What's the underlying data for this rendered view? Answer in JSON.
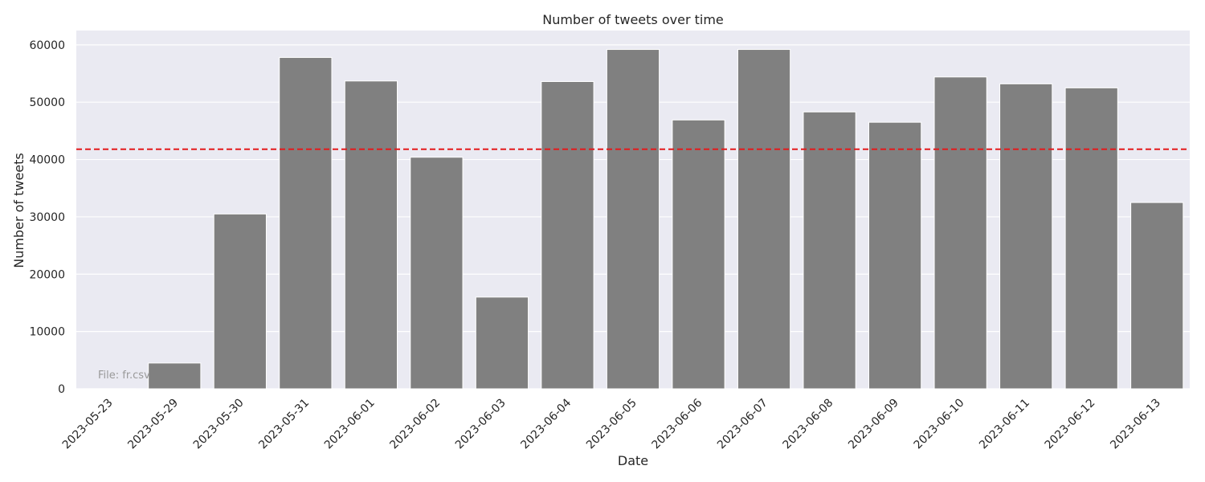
{
  "chart_data": {
    "type": "bar",
    "title": "Number of tweets over time",
    "xlabel": "Date",
    "ylabel": "Number of tweets",
    "categories": [
      "2023-05-23",
      "2023-05-29",
      "2023-05-30",
      "2023-05-31",
      "2023-06-01",
      "2023-06-02",
      "2023-06-03",
      "2023-06-04",
      "2023-06-05",
      "2023-06-06",
      "2023-06-07",
      "2023-06-08",
      "2023-06-09",
      "2023-06-10",
      "2023-06-11",
      "2023-06-12",
      "2023-06-13"
    ],
    "values": [
      10,
      4500,
      30500,
      57800,
      53700,
      40400,
      16000,
      53600,
      59200,
      46900,
      59200,
      48300,
      46500,
      54400,
      53200,
      52500,
      32500
    ],
    "ylim": [
      0,
      62500
    ],
    "yticks": [
      0,
      10000,
      20000,
      30000,
      40000,
      50000,
      60000
    ],
    "mean_line": {
      "value": 41800,
      "color": "#e31a1c",
      "style": "dashed"
    },
    "bar_color": "#808080",
    "background_color": "#eaeaf2",
    "grid": true,
    "annotation": "File: fr.csv"
  }
}
